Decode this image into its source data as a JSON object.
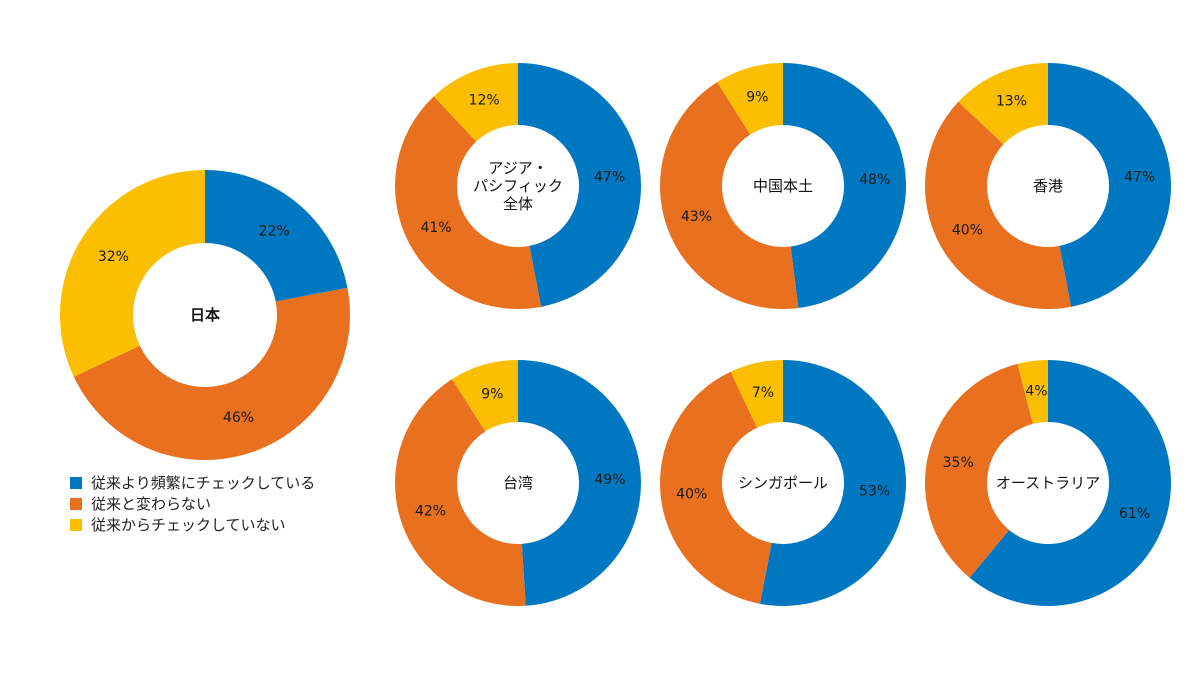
{
  "chart_data": {
    "type": "donut",
    "legend": [
      {
        "label": "従来より頻繁にチェックしている",
        "color": "#0078C1"
      },
      {
        "label": "従来と変わらない",
        "color": "#E8701E"
      },
      {
        "label": "従来からチェックしていない",
        "color": "#FBBE00"
      }
    ],
    "charts": [
      {
        "name_lines": [
          "日本"
        ],
        "values": [
          22,
          46,
          32
        ]
      },
      {
        "name_lines": [
          "アジア・",
          "パシフィック",
          "全体"
        ],
        "values": [
          47,
          41,
          12
        ]
      },
      {
        "name_lines": [
          "中国本土"
        ],
        "values": [
          48,
          43,
          9
        ]
      },
      {
        "name_lines": [
          "香港"
        ],
        "values": [
          47,
          40,
          13
        ]
      },
      {
        "name_lines": [
          "台湾"
        ],
        "values": [
          49,
          42,
          9
        ]
      },
      {
        "name_lines": [
          "シンガポール"
        ],
        "values": [
          53,
          40,
          7
        ]
      },
      {
        "name_lines": [
          "オーストラリア"
        ],
        "values": [
          61,
          35,
          4
        ]
      }
    ]
  }
}
